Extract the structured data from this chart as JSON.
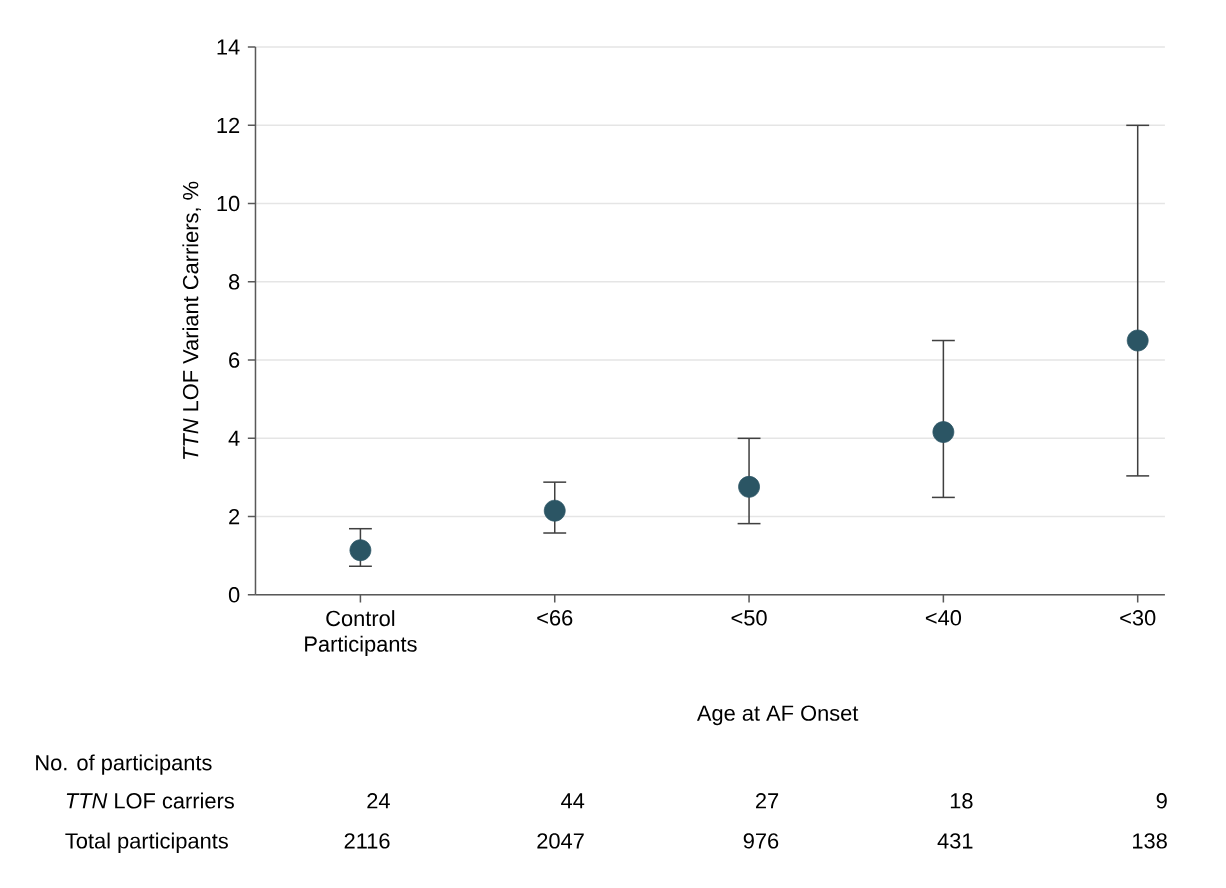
{
  "chart_data": {
    "type": "scatter",
    "ylabel": "*TTN* LOF Variant Carriers, %",
    "xlabel": "Age at AF Onset",
    "categories": [
      "Control Participants",
      "<66",
      "<50",
      "<40",
      "<30"
    ],
    "series": [
      {
        "color": "#2b5564",
        "values": [
          1.14,
          2.15,
          2.76,
          4.16,
          6.5
        ],
        "errors": [
          [
            0.73,
            1.69
          ],
          [
            1.58,
            2.88
          ],
          [
            1.82,
            4.0
          ],
          [
            2.49,
            6.5
          ],
          [
            3.04,
            12.0
          ]
        ]
      }
    ],
    "ylim": [
      0,
      14
    ],
    "yticks": [
      0,
      2,
      4,
      6,
      8,
      10,
      12,
      14
    ],
    "grid": "y",
    "marker": "circle",
    "annotations": [
      "No. of participants",
      "*TTN* LOF carriers",
      "Total participants",
      "24",
      "44",
      "27",
      "18",
      "9",
      "2116",
      "2047",
      "976",
      "431",
      "138"
    ]
  }
}
